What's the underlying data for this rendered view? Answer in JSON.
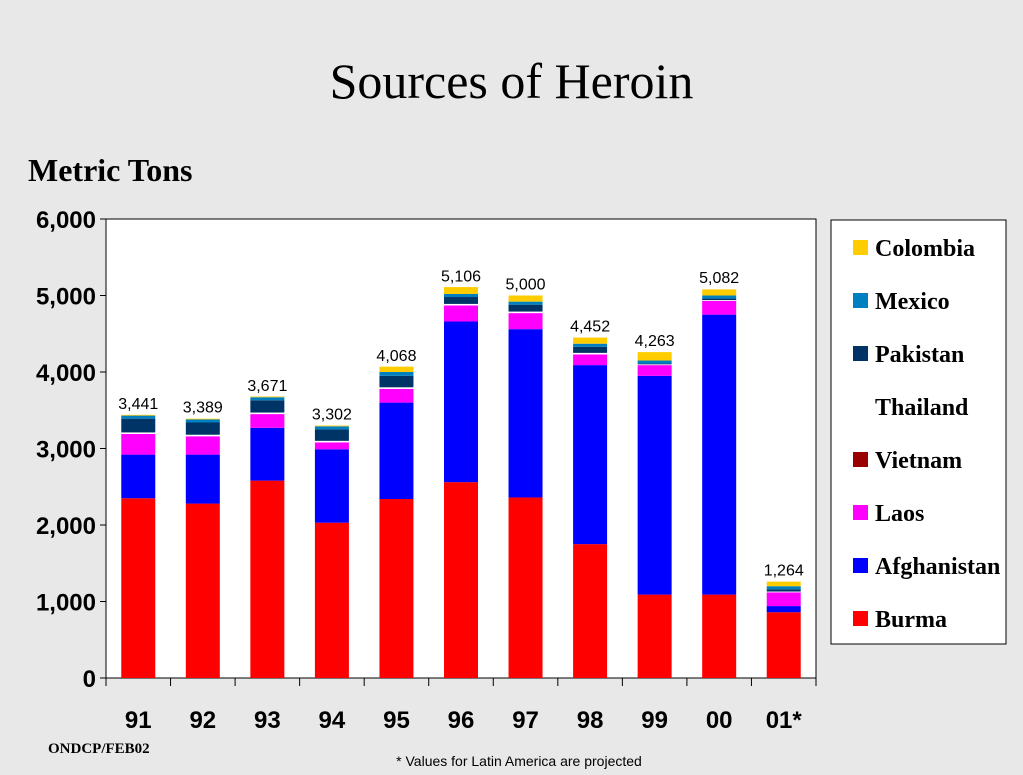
{
  "chart_data": {
    "type": "bar",
    "stacked": true,
    "title": "Sources of Heroin",
    "ylabel": "Metric Tons",
    "xlabel": "",
    "ylim": [
      0,
      6000
    ],
    "yticks": [
      0,
      1000,
      2000,
      3000,
      4000,
      5000,
      6000
    ],
    "ytick_labels": [
      "0",
      "1,000",
      "2,000",
      "3,000",
      "4,000",
      "5,000",
      "6,000"
    ],
    "categories": [
      "91",
      "92",
      "93",
      "94",
      "95",
      "96",
      "97",
      "98",
      "99",
      "00",
      "01*"
    ],
    "totals": [
      3441,
      3389,
      3671,
      3302,
      4068,
      5106,
      5000,
      4452,
      4263,
      5082,
      1264
    ],
    "total_labels": [
      "3,441",
      "3,389",
      "3,671",
      "3,302",
      "4,068",
      "5,106",
      "5,000",
      "4,452",
      "4,263",
      "5,082",
      "1,264"
    ],
    "series": [
      {
        "name": "Burma",
        "color": "#ff0000",
        "values": [
          2350,
          2280,
          2580,
          2030,
          2340,
          2560,
          2360,
          1750,
          1090,
          1090,
          860
        ]
      },
      {
        "name": "Afghanistan",
        "color": "#0000ff",
        "values": [
          570,
          640,
          690,
          960,
          1260,
          2100,
          2200,
          2340,
          2860,
          3660,
          80
        ]
      },
      {
        "name": "Laos",
        "color": "#ff00ff",
        "values": [
          270,
          240,
          180,
          90,
          180,
          210,
          210,
          140,
          140,
          180,
          180
        ]
      },
      {
        "name": "Vietnam",
        "color": "#990000",
        "values": [
          0,
          0,
          0,
          0,
          0,
          0,
          0,
          0,
          0,
          0,
          0
        ]
      },
      {
        "name": "Thailand",
        "color": "#ffffff",
        "values": [
          20,
          20,
          20,
          20,
          20,
          20,
          20,
          20,
          10,
          10,
          10
        ]
      },
      {
        "name": "Pakistan",
        "color": "#003366",
        "values": [
          180,
          160,
          160,
          150,
          150,
          90,
          90,
          80,
          10,
          20,
          30
        ]
      },
      {
        "name": "Mexico",
        "color": "#0080c0",
        "values": [
          40,
          40,
          40,
          40,
          50,
          40,
          40,
          40,
          40,
          40,
          40
        ]
      },
      {
        "name": "Colombia",
        "color": "#ffcc00",
        "values": [
          10,
          10,
          10,
          10,
          70,
          90,
          80,
          80,
          110,
          80,
          60
        ]
      }
    ],
    "legend_order": [
      "Colombia",
      "Mexico",
      "Pakistan",
      "Thailand",
      "Vietnam",
      "Laos",
      "Afghanistan",
      "Burma"
    ],
    "legend_position": "right",
    "grid": false
  },
  "source_note": "ONDCP/FEB02",
  "footnote": "* Values for Latin America are projected"
}
